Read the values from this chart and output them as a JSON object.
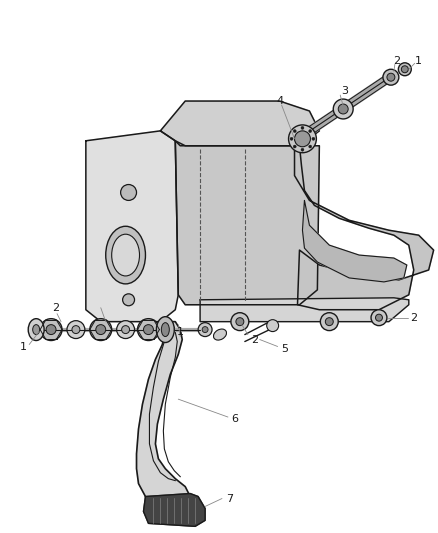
{
  "bg_color": "#ffffff",
  "line_color": "#1a1a1a",
  "gray_fill": "#d8d8d8",
  "dark_fill": "#555555",
  "leader_color": "#888888",
  "fig_width": 4.38,
  "fig_height": 5.33,
  "dpi": 100
}
